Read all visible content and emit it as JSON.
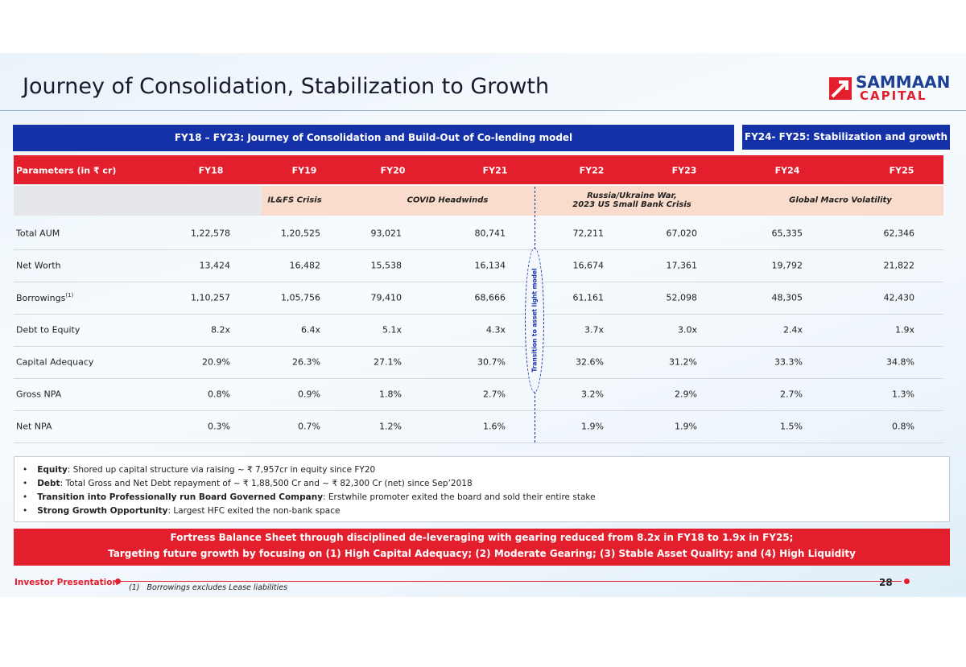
{
  "header": {
    "title": "Journey of Consolidation, Stabilization to Growth",
    "logo_top": "SAMMAAN",
    "logo_bottom": "CAPITAL"
  },
  "banners": [
    "FY18 – FY23: Journey of Consolidation and Build-Out of Co-lending model",
    "FY24- FY25: Stabilization and growth"
  ],
  "table": {
    "columns": [
      "Parameters (in ₹ cr)",
      "FY18",
      "FY19",
      "FY20",
      "FY21",
      "FY22",
      "FY23",
      "FY24",
      "FY25"
    ],
    "events": [
      [
        "IL&FS Crisis"
      ],
      [
        "COVID Headwinds"
      ],
      [
        "Russia/Ukraine War,",
        "2023 US Small Bank Crisis"
      ],
      [
        "Global Macro Volatility"
      ]
    ],
    "rows": [
      {
        "label": "Total AUM",
        "values": [
          "1,22,578",
          "1,20,525",
          "93,021",
          "80,741",
          "72,211",
          "67,020",
          "65,335",
          "62,346"
        ]
      },
      {
        "label": "Net Worth",
        "values": [
          "13,424",
          "16,482",
          "15,538",
          "16,134",
          "16,674",
          "17,361",
          "19,792",
          "21,822"
        ]
      },
      {
        "label": "Borrowings",
        "note": "(1)",
        "values": [
          "1,10,257",
          "1,05,756",
          "79,410",
          "68,666",
          "61,161",
          "52,098",
          "48,305",
          "42,430"
        ]
      },
      {
        "label": "Debt to Equity",
        "values": [
          "8.2x",
          "6.4x",
          "5.1x",
          "4.3x",
          "3.7x",
          "3.0x",
          "2.4x",
          "1.9x"
        ]
      },
      {
        "label": "Capital Adequacy",
        "values": [
          "20.9%",
          "26.3%",
          "27.1%",
          "30.7%",
          "32.6%",
          "31.2%",
          "33.3%",
          "34.8%"
        ]
      },
      {
        "label": "Gross NPA",
        "values": [
          "0.8%",
          "0.9%",
          "1.8%",
          "2.7%",
          "3.2%",
          "2.9%",
          "2.7%",
          "1.3%"
        ]
      },
      {
        "label": "Net NPA",
        "values": [
          "0.3%",
          "0.7%",
          "1.2%",
          "1.6%",
          "1.9%",
          "1.9%",
          "1.5%",
          "0.8%"
        ]
      }
    ],
    "transition": "Transition to asset light model"
  },
  "bullets": [
    {
      "label": "Equity",
      "text": ": Shored up capital structure via raising ~ ₹ 7,957cr in equity since FY20"
    },
    {
      "label": "Debt",
      "text": ": Total Gross and Net Debt repayment of ~ ₹ 1,88,500 Cr and ~ ₹ 82,300 Cr (net) since Sep’2018"
    },
    {
      "label": "Transition into Professionally run Board Governed Company",
      "text": ": Erstwhile promoter exited the board and sold their entire stake"
    },
    {
      "label": "Strong Growth Opportunity",
      "text": ": Largest HFC exited the non-bank space"
    }
  ],
  "conclusion": [
    "Fortress Balance Sheet through disciplined de-leveraging with gearing reduced from 8.2x in FY18 to 1.9x in FY25;",
    "Targeting future growth by focusing on (1) High Capital Adequacy; (2) Moderate Gearing; (3) Stable Asset Quality; and (4) High Liquidity"
  ],
  "footer": {
    "left": "Investor Presentation",
    "page": "28",
    "footnote_marker": "(1)",
    "footnote": "Borrowings excludes Lease liabilities"
  }
}
